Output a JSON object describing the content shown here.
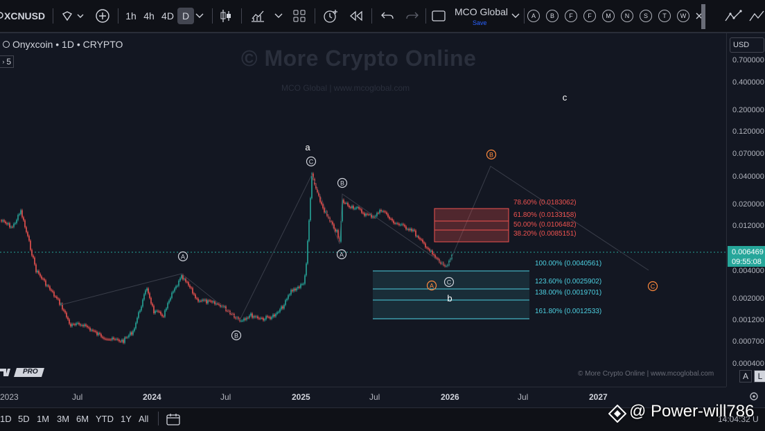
{
  "toolbar": {
    "symbol": "XCNUSD",
    "intervals": [
      "1h",
      "4h",
      "4D",
      "D"
    ],
    "active_interval": "D",
    "layout_name": "MCO Global",
    "layout_save": "Save",
    "drawing_buttons": [
      "A",
      "B",
      "F",
      "F",
      "M",
      "N",
      "S",
      "T",
      "W"
    ]
  },
  "chart": {
    "legend_title": "Onyxcoin • 1D • CRYPTO",
    "legend_badge": "5",
    "watermark": "© More Crypto Online",
    "watermark_sub": "MCO Global   |   www.mcoglobal.com",
    "credits": "© More Crypto Online   |   www.mcoglobal.com",
    "tv_logo_text": "PRO"
  },
  "price_axis": {
    "currency": "USD",
    "labels": [
      "0.700000",
      "0.400000",
      "0.200000",
      "0.120000",
      "0.070000",
      "0.040000",
      "0.020000",
      "0.012000",
      "0.004000",
      "0.002000",
      "0.001200",
      "0.000700",
      "0.000400"
    ],
    "current_price": "0.006469",
    "countdown": "09:55:08"
  },
  "time_axis": {
    "labels": [
      "2023",
      "Jul",
      "2024",
      "Jul",
      "2025",
      "Jul",
      "2026",
      "Jul",
      "2027"
    ],
    "scale_buttons": [
      "A",
      "L"
    ]
  },
  "waves": {
    "a": "a",
    "b": "b",
    "c": "c",
    "circled": [
      "A",
      "B",
      "C",
      "A",
      "B",
      "C",
      "A",
      "B",
      "C"
    ]
  },
  "fib_levels": {
    "red": [
      "78.60% (0.0183062)",
      "61.80% (0.0133158)",
      "50.00% (0.0106482)",
      "38.20% (0.0085151)"
    ],
    "cyan": [
      "100.00% (0.0040561)",
      "123.60% (0.0025902)",
      "138.00% (0.0019701)",
      "161.80% (0.0012533)"
    ]
  },
  "bottom_bar": {
    "ranges": [
      "1D",
      "5D",
      "1M",
      "3M",
      "6M",
      "YTD",
      "1Y",
      "All"
    ],
    "overlay_text": "@ Power-will786",
    "clock": "14:04:32 U"
  },
  "colors": {
    "background": "#131722",
    "up_candle": "#26a69a",
    "down_candle": "#ef5350",
    "fib_red": "#ef5350",
    "fib_cyan": "#4dd0e1",
    "wave_orange": "#ff8a3d"
  }
}
